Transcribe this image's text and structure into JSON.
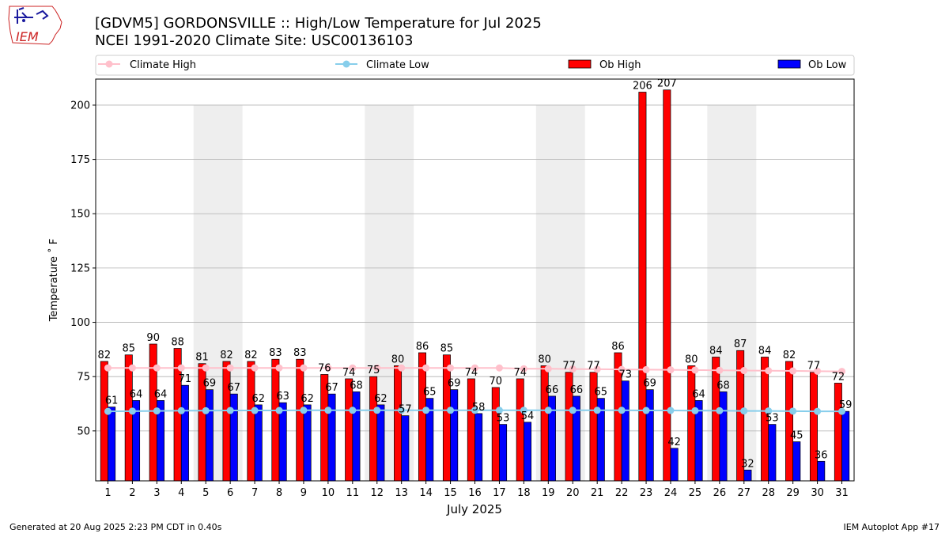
{
  "logo": {
    "text": "IEM",
    "colors": {
      "map": "#1a1a9e",
      "text": "#cc2222"
    }
  },
  "header": {
    "title_line1": "[GDVM5] GORDONSVILLE :: High/Low Temperature for Jul 2025",
    "title_line2": "NCEI 1991-2020 Climate Site: USC00136103"
  },
  "legend": {
    "climate_high": "Climate High",
    "climate_low": "Climate Low",
    "ob_high": "Ob High",
    "ob_low": "Ob Low"
  },
  "colors": {
    "ob_high": "#ff0000",
    "ob_low": "#0000ff",
    "climate_high": "#ffc0cb",
    "climate_low": "#87ceeb",
    "weekend_shade": "#eeeeee",
    "grid": "#b0b0b0"
  },
  "footer": {
    "generated": "Generated at 20 Aug 2025 2:23 PM CDT in 0.40s",
    "app": "IEM Autoplot App #17"
  },
  "chart_data": {
    "type": "bar",
    "xlabel": "July 2025",
    "ylabel": "Temperature ˚ F",
    "ylim": [
      27,
      212
    ],
    "yticks": [
      50,
      75,
      100,
      125,
      150,
      175,
      200
    ],
    "grid": true,
    "legend_position": "top",
    "categories": [
      "1",
      "2",
      "3",
      "4",
      "5",
      "6",
      "7",
      "8",
      "9",
      "10",
      "11",
      "12",
      "13",
      "14",
      "15",
      "16",
      "17",
      "18",
      "19",
      "20",
      "21",
      "22",
      "23",
      "24",
      "25",
      "26",
      "27",
      "28",
      "29",
      "30",
      "31"
    ],
    "shaded_ranges": [
      [
        5,
        6
      ],
      [
        12,
        13
      ],
      [
        19,
        20
      ],
      [
        26,
        27
      ]
    ],
    "series": [
      {
        "name": "Ob High",
        "kind": "bar",
        "values": [
          82,
          85,
          90,
          88,
          81,
          82,
          82,
          83,
          83,
          76,
          74,
          75,
          80,
          86,
          85,
          74,
          70,
          74,
          80,
          77,
          77,
          86,
          206,
          207,
          80,
          84,
          87,
          84,
          82,
          77,
          72
        ]
      },
      {
        "name": "Ob Low",
        "kind": "bar",
        "values": [
          61,
          64,
          64,
          71,
          69,
          67,
          62,
          63,
          62,
          67,
          68,
          62,
          57,
          65,
          69,
          58,
          53,
          54,
          66,
          66,
          65,
          73,
          69,
          42,
          64,
          68,
          32,
          53,
          45,
          36,
          59
        ]
      },
      {
        "name": "Climate High",
        "kind": "line",
        "values": [
          79,
          79,
          79,
          79,
          79,
          79,
          79,
          79,
          79,
          79,
          79,
          79,
          79,
          79,
          79,
          79,
          79,
          78.6,
          78.6,
          78.5,
          78.4,
          78.3,
          78.2,
          78.1,
          78,
          77.9,
          77.8,
          77.7,
          77.6,
          77.5,
          77.4
        ]
      },
      {
        "name": "Climate Low",
        "kind": "line",
        "values": [
          59,
          59.1,
          59.2,
          59.3,
          59.3,
          59.4,
          59.4,
          59.4,
          59.5,
          59.5,
          59.5,
          59.5,
          59.5,
          59.5,
          59.5,
          59.5,
          59.5,
          59.5,
          59.5,
          59.5,
          59.5,
          59.5,
          59.4,
          59.4,
          59.3,
          59.3,
          59.2,
          59.2,
          59.1,
          59,
          59
        ]
      }
    ]
  }
}
